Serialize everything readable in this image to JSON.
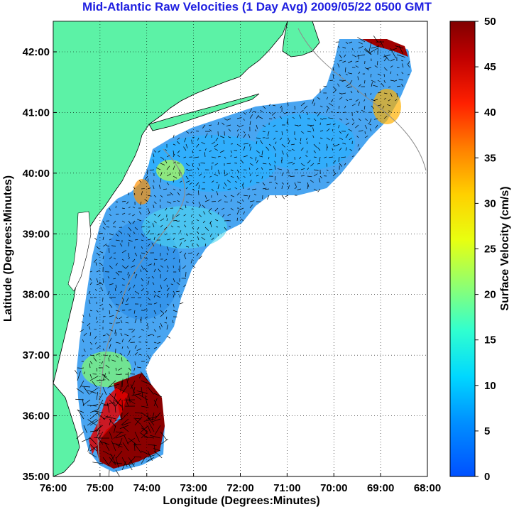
{
  "title": "Mid-Atlantic Raw Velocities (1 Day Avg) 2009/05/22 0500 GMT",
  "axes": {
    "xlabel": "Longitude (Degrees:Minutes)",
    "ylabel": "Latitude (Degrees:Minutes)",
    "x_ticks": [
      "76:00",
      "75:00",
      "74:00",
      "73:00",
      "72:00",
      "71:00",
      "70:00",
      "69:00",
      "68:00"
    ],
    "y_ticks": [
      "42:00",
      "41:00",
      "40:00",
      "39:00",
      "38:00",
      "37:00",
      "36:00",
      "35:00"
    ]
  },
  "colorbar": {
    "label": "Surface Velocity (cm/s)",
    "ticks": [
      "50",
      "45",
      "40",
      "35",
      "30",
      "25",
      "20",
      "15",
      "10",
      "5",
      "0"
    ],
    "range": [
      0,
      50
    ],
    "colors": [
      "#0040ff",
      "#0080ff",
      "#00c0ff",
      "#00ffff",
      "#40ffc0",
      "#80ff80",
      "#c0ff40",
      "#ffff00",
      "#ffc000",
      "#ff8000",
      "#ff4000",
      "#ff0000",
      "#c00000",
      "#800000"
    ]
  },
  "colors": {
    "land": "#5cf2a6",
    "coast": "#000000",
    "bathymetry": "#8c8c8c",
    "grid": "#000000",
    "title": "#1f1fe0"
  }
}
